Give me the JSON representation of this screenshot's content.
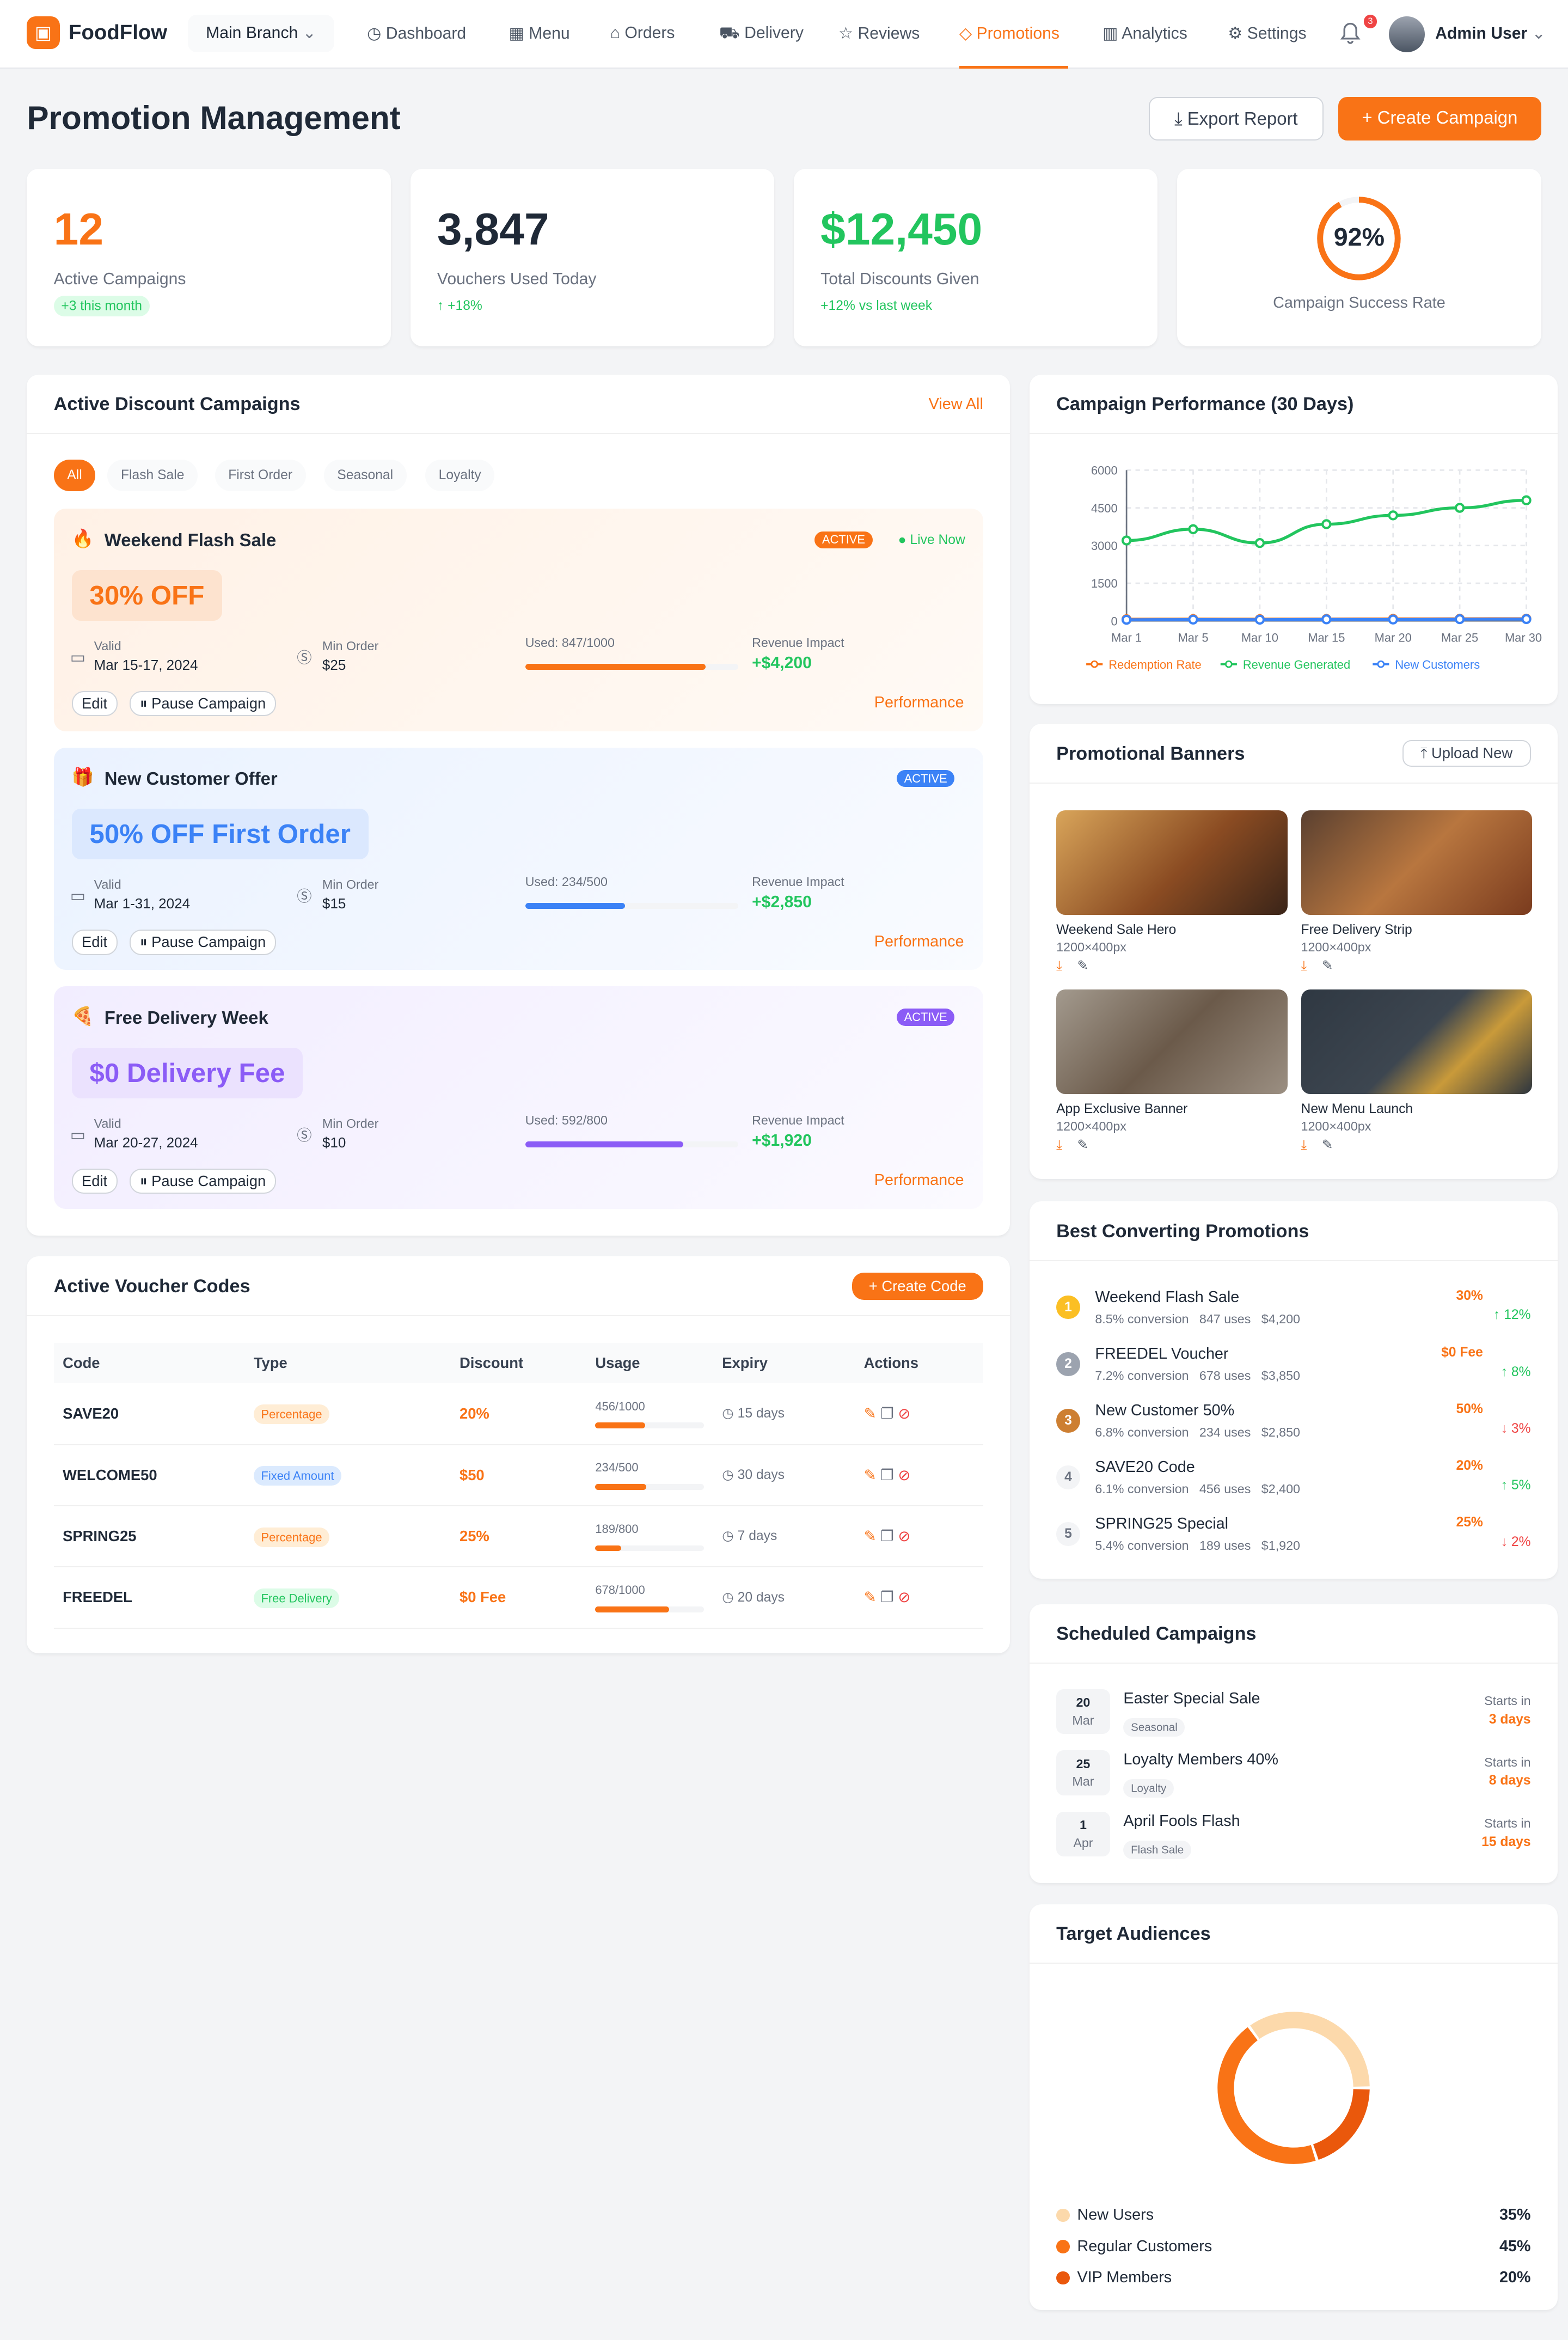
{
  "nav": {
    "brand": "FoodFlow",
    "branch": "Main Branch",
    "items": [
      {
        "label": "Dashboard",
        "icon": "dashboard-icon"
      },
      {
        "label": "Menu",
        "icon": "grid-icon"
      },
      {
        "label": "Orders",
        "icon": "bag-icon"
      },
      {
        "label": "Delivery",
        "icon": "truck-icon"
      },
      {
        "label": "Reviews",
        "icon": "star-icon"
      },
      {
        "label": "Promotions",
        "icon": "tag-icon",
        "active": true
      },
      {
        "label": "Analytics",
        "icon": "chart-icon"
      },
      {
        "label": "Settings",
        "icon": "gear-icon"
      }
    ],
    "notifications": "3",
    "user": "Admin User"
  },
  "page": {
    "title": "Promotion Management",
    "export": "Export Report",
    "create": "Create Campaign"
  },
  "stats": [
    {
      "value": "12",
      "label": "Active Campaigns",
      "sub": "+3 this month",
      "color": "#f97316"
    },
    {
      "value": "3,847",
      "label": "Vouchers Used Today",
      "sub": "+18%",
      "color": "#1f2937"
    },
    {
      "value": "$12,450",
      "label": "Total Discounts Given",
      "sub": "+12% vs last week",
      "color": "#22c55e"
    },
    {
      "value": "92%",
      "label": "Campaign Success Rate",
      "progress": 0.92
    }
  ],
  "campaigns": {
    "title": "Active Discount Campaigns",
    "view_all": "View All",
    "filters": [
      "All",
      "Flash Sale",
      "First Order",
      "Seasonal",
      "Loyalty"
    ],
    "items": [
      {
        "emoji": "🔥",
        "name": "Weekend Flash Sale",
        "status": "ACTIVE",
        "live": "Live Now",
        "offer": "30% OFF",
        "valid_label": "Valid",
        "valid": "Mar 15-17, 2024",
        "min_label": "Min Order",
        "min": "$25",
        "used": "Used: 847/1000",
        "used_fraction": 0.847,
        "rev_label": "Revenue Impact",
        "revenue": "+$4,200",
        "edit": "Edit",
        "pause": "Pause Campaign",
        "perf": "Performance",
        "color": "#f97316"
      },
      {
        "emoji": "🎁",
        "name": "New Customer Offer",
        "status": "ACTIVE",
        "offer": "50% OFF First Order",
        "valid_label": "Valid",
        "valid": "Mar 1-31, 2024",
        "min_label": "Min Order",
        "min": "$15",
        "used": "Used: 234/500",
        "used_fraction": 0.468,
        "rev_label": "Revenue Impact",
        "revenue": "+$2,850",
        "edit": "Edit",
        "pause": "Pause Campaign",
        "perf": "Performance",
        "color": "#3b82f6"
      },
      {
        "emoji": "🍕",
        "name": "Free Delivery Week",
        "status": "ACTIVE",
        "offer": "$0 Delivery Fee",
        "valid_label": "Valid",
        "valid": "Mar 20-27, 2024",
        "min_label": "Min Order",
        "min": "$10",
        "used": "Used: 592/800",
        "used_fraction": 0.74,
        "rev_label": "Revenue Impact",
        "revenue": "+$1,920",
        "edit": "Edit",
        "pause": "Pause Campaign",
        "perf": "Performance",
        "color": "#8b5cf6"
      }
    ]
  },
  "vouchers": {
    "title": "Active Voucher Codes",
    "create": "Create Code",
    "columns": [
      "Code",
      "Type",
      "Discount",
      "Usage",
      "Expiry",
      "Actions"
    ],
    "rows": [
      {
        "code": "SAVE20",
        "type": "Percentage",
        "type_color": "#f97316",
        "discount": "20%",
        "usage": "456/1000",
        "usage_fraction": 0.456,
        "expiry": "15 days"
      },
      {
        "code": "WELCOME50",
        "type": "Fixed Amount",
        "type_color": "#3b82f6",
        "discount": "$50",
        "usage": "234/500",
        "usage_fraction": 0.468,
        "expiry": "30 days"
      },
      {
        "code": "SPRING25",
        "type": "Percentage",
        "type_color": "#f97316",
        "discount": "25%",
        "usage": "189/800",
        "usage_fraction": 0.236,
        "expiry": "7 days"
      },
      {
        "code": "FREEDEL",
        "type": "Free Delivery",
        "type_color": "#22c55e",
        "discount": "$0 Fee",
        "usage": "678/1000",
        "usage_fraction": 0.678,
        "expiry": "20 days"
      }
    ]
  },
  "performance": {
    "title": "Campaign Performance (30 Days)"
  },
  "chart_data": {
    "type": "line",
    "x": [
      "Mar 1",
      "Mar 5",
      "Mar 10",
      "Mar 15",
      "Mar 20",
      "Mar 25",
      "Mar 30"
    ],
    "ylim": [
      0,
      6000
    ],
    "yticks": [
      "0",
      "1500",
      "3000",
      "4500",
      "6000"
    ],
    "grid": true,
    "legend": "bottom",
    "series": [
      {
        "name": "Redemption Rate",
        "color": "#f97316",
        "values": [
          65,
          70,
          68,
          75,
          78,
          82,
          85
        ]
      },
      {
        "name": "Revenue Generated",
        "color": "#22c55e",
        "values": [
          3200,
          3650,
          3100,
          3850,
          4200,
          4500,
          4800
        ]
      },
      {
        "name": "New Customers",
        "color": "#3b82f6",
        "values": [
          45,
          52,
          48,
          61,
          55,
          67,
          72
        ]
      }
    ]
  },
  "banners": {
    "title": "Promotional Banners",
    "upload": "Upload New",
    "items": [
      {
        "name": "Weekend Sale Hero",
        "size": "1200×400px"
      },
      {
        "name": "Free Delivery Strip",
        "size": "1200×400px"
      },
      {
        "name": "App Exclusive Banner",
        "size": "1200×400px"
      },
      {
        "name": "New Menu Launch",
        "size": "1200×400px"
      }
    ]
  },
  "best": {
    "title": "Best Converting Promotions",
    "items": [
      {
        "rank": "1",
        "name": "Weekend Flash Sale",
        "conv": "8.5% conversion",
        "uses": "847 uses",
        "rev": "$4,200",
        "discount": "30%",
        "trend": "12%",
        "up": true
      },
      {
        "rank": "2",
        "name": "FREEDEL Voucher",
        "conv": "7.2% conversion",
        "uses": "678 uses",
        "rev": "$3,850",
        "discount": "$0 Fee",
        "trend": "8%",
        "up": true
      },
      {
        "rank": "3",
        "name": "New Customer 50%",
        "conv": "6.8% conversion",
        "uses": "234 uses",
        "rev": "$2,850",
        "discount": "50%",
        "trend": "3%",
        "up": false
      },
      {
        "rank": "4",
        "name": "SAVE20 Code",
        "conv": "6.1% conversion",
        "uses": "456 uses",
        "rev": "$2,400",
        "discount": "20%",
        "trend": "5%",
        "up": true
      },
      {
        "rank": "5",
        "name": "SPRING25 Special",
        "conv": "5.4% conversion",
        "uses": "189 uses",
        "rev": "$1,920",
        "discount": "25%",
        "trend": "2%",
        "up": false
      }
    ]
  },
  "scheduled": {
    "title": "Scheduled Campaigns",
    "items": [
      {
        "day": "20",
        "month": "Mar",
        "name": "Easter Special Sale",
        "tag": "Seasonal",
        "starts": "Starts in",
        "in": "3 days"
      },
      {
        "day": "25",
        "month": "Mar",
        "name": "Loyalty Members 40%",
        "tag": "Loyalty",
        "starts": "Starts in",
        "in": "8 days"
      },
      {
        "day": "1",
        "month": "Apr",
        "name": "April Fools Flash",
        "tag": "Flash Sale",
        "starts": "Starts in",
        "in": "15 days"
      }
    ]
  },
  "audiences": {
    "title": "Target Audiences",
    "items": [
      {
        "label": "New Users",
        "value": "35%",
        "pct": 35,
        "color": "#fcd9ab"
      },
      {
        "label": "Regular Customers",
        "value": "45%",
        "pct": 45,
        "color": "#f97316"
      },
      {
        "label": "VIP Members",
        "value": "20%",
        "pct": 20,
        "color": "#ea580c"
      }
    ]
  }
}
